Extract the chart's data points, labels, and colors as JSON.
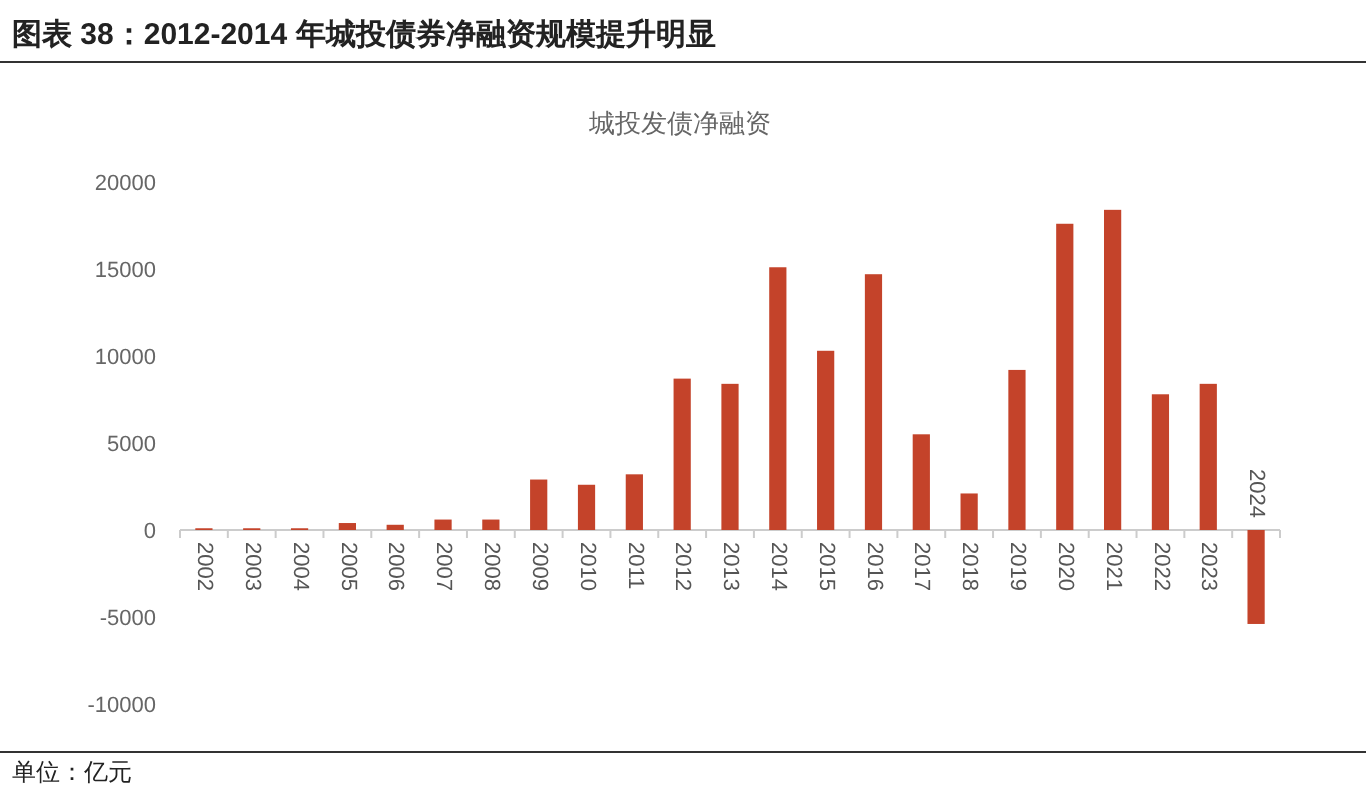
{
  "chart_data": {
    "type": "bar",
    "title": "图表 38：2012-2014 年城投债券净融资规模提升明显",
    "subtitle": "城投发债净融资",
    "categories": [
      "2002",
      "2003",
      "2004",
      "2005",
      "2006",
      "2007",
      "2008",
      "2009",
      "2010",
      "2011",
      "2012",
      "2013",
      "2014",
      "2015",
      "2016",
      "2017",
      "2018",
      "2019",
      "2020",
      "2021",
      "2022",
      "2023",
      "2024"
    ],
    "series": [
      {
        "color": "#c4432a",
        "values": [
          100,
          100,
          100,
          400,
          300,
          600,
          600,
          2900,
          2600,
          3200,
          8700,
          8400,
          15100,
          10300,
          14700,
          5500,
          2100,
          9200,
          17600,
          18400,
          7800,
          8400,
          -5400
        ]
      }
    ],
    "ylim": [
      -10000,
      20000
    ],
    "yticks": [
      -10000,
      -5000,
      0,
      5000,
      10000,
      15000,
      20000
    ],
    "grid": false,
    "annotations": [
      "单位：亿元"
    ]
  }
}
